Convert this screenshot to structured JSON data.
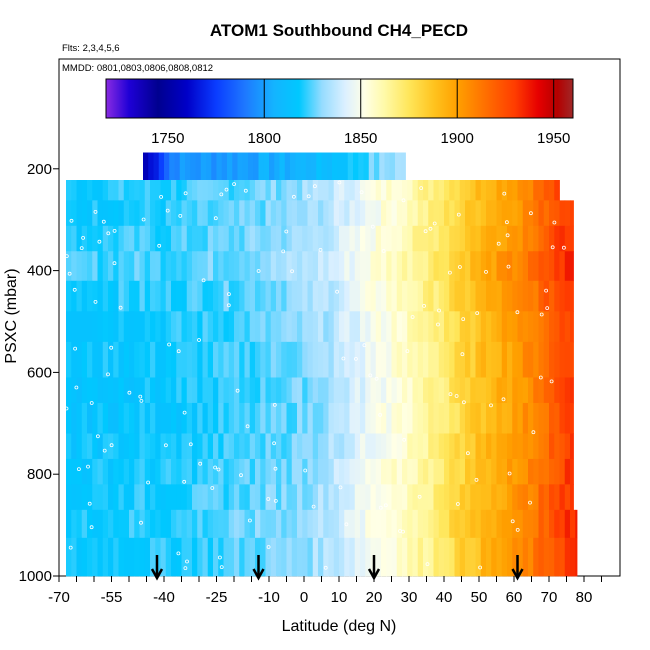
{
  "chart_data": {
    "type": "heatmap",
    "title": "ATOM1 Southbound CH4_PECD",
    "flights_note": "Flts: 2,3,4,5,6",
    "dates_note": "MMDD: 0801,0803,0806,0808,0812",
    "xlabel": "Latitude (deg N)",
    "ylabel": "PSXC (mbar)",
    "x_ticks": [
      "-70",
      "-55",
      "-40",
      "-25",
      "-10",
      "0",
      "10",
      "20",
      "30",
      "40",
      "50",
      "60",
      "70",
      "80"
    ],
    "y_ticks": [
      "200",
      "400",
      "600",
      "800",
      "1000"
    ],
    "xlim": [
      -70,
      85
    ],
    "ylim": [
      1000,
      0
    ],
    "colorbar": {
      "range": [
        1718,
        1960
      ],
      "tick_values": [
        1750,
        1800,
        1850,
        1900,
        1950
      ],
      "tick_labels": [
        "1750",
        "1800",
        "1850",
        "1900",
        "1950"
      ],
      "gradient": [
        [
          1718,
          "#8a2be2"
        ],
        [
          1730,
          "#1e00d6"
        ],
        [
          1745,
          "#00008f"
        ],
        [
          1760,
          "#0000c8"
        ],
        [
          1775,
          "#0a3cff"
        ],
        [
          1790,
          "#1e78ff"
        ],
        [
          1805,
          "#14b4ff"
        ],
        [
          1818,
          "#00c8ff"
        ],
        [
          1830,
          "#96dcff"
        ],
        [
          1842,
          "#dcf0ff"
        ],
        [
          1852,
          "#ffffe6"
        ],
        [
          1862,
          "#fffaaa"
        ],
        [
          1875,
          "#ffe65a"
        ],
        [
          1888,
          "#ffc31e"
        ],
        [
          1900,
          "#ffa000"
        ],
        [
          1915,
          "#ff6e00"
        ],
        [
          1930,
          "#ff3c00"
        ],
        [
          1942,
          "#e60000"
        ],
        [
          1952,
          "#b40000"
        ],
        [
          1960,
          "#a02828"
        ]
      ]
    },
    "arrows_lat": [
      -42,
      -13,
      20,
      61
    ],
    "profile": {
      "lat": [
        -68,
        -60,
        -50,
        -40,
        -30,
        -20,
        -10,
        0,
        5,
        10,
        15,
        20,
        25,
        30,
        35,
        40,
        45,
        50,
        55,
        60,
        65,
        70,
        75,
        78
      ],
      "ch4": [
        1815,
        1817,
        1818,
        1818,
        1820,
        1822,
        1825,
        1828,
        1832,
        1836,
        1842,
        1848,
        1853,
        1858,
        1864,
        1872,
        1880,
        1888,
        1895,
        1900,
        1908,
        1918,
        1928,
        1932
      ]
    },
    "layers": [
      {
        "top": 168,
        "bottom": 222,
        "lat_min": -46,
        "lat_max": 29,
        "offset": -22
      },
      {
        "top": 222,
        "bottom": 262,
        "lat_min": -68,
        "lat_max": 73,
        "offset": 3
      },
      {
        "top": 262,
        "bottom": 312,
        "lat_min": -68,
        "lat_max": 77,
        "offset": 2
      },
      {
        "top": 312,
        "bottom": 362,
        "lat_min": -68,
        "lat_max": 77,
        "offset": 4
      },
      {
        "top": 362,
        "bottom": 420,
        "lat_min": -68,
        "lat_max": 77,
        "offset": 6
      },
      {
        "top": 420,
        "bottom": 480,
        "lat_min": -68,
        "lat_max": 77,
        "offset": 3
      },
      {
        "top": 480,
        "bottom": 540,
        "lat_min": -68,
        "lat_max": 77,
        "offset": 1
      },
      {
        "top": 540,
        "bottom": 610,
        "lat_min": -68,
        "lat_max": 77,
        "offset": 0
      },
      {
        "top": 610,
        "bottom": 660,
        "lat_min": -68,
        "lat_max": 77,
        "offset": -1
      },
      {
        "top": 660,
        "bottom": 720,
        "lat_min": -68,
        "lat_max": 77,
        "offset": -1
      },
      {
        "top": 720,
        "bottom": 770,
        "lat_min": -68,
        "lat_max": 77,
        "offset": 0
      },
      {
        "top": 770,
        "bottom": 820,
        "lat_min": -68,
        "lat_max": 77,
        "offset": 1
      },
      {
        "top": 820,
        "bottom": 870,
        "lat_min": -68,
        "lat_max": 77,
        "offset": 2
      },
      {
        "top": 870,
        "bottom": 925,
        "lat_min": -68,
        "lat_max": 78,
        "offset": 3
      },
      {
        "top": 925,
        "bottom": 1000,
        "lat_min": -68,
        "lat_max": 78,
        "offset": 2
      }
    ]
  }
}
